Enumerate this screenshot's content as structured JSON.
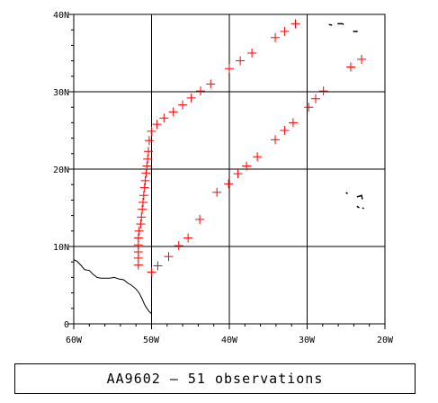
{
  "caption": "AA9602 – 51 observations",
  "axes": {
    "x_ticks": [
      "60W",
      "50W",
      "40W",
      "30W",
      "20W"
    ],
    "y_ticks": [
      "0",
      "10N",
      "20N",
      "30N",
      "40N"
    ]
  },
  "colors": {
    "track": "#ff0000",
    "grid": "#000000",
    "coast": "#000000",
    "background": "#ffffff"
  },
  "map_data": {
    "projection": "equirectangular",
    "lon_range": [
      -60,
      -20
    ],
    "lat_range": [
      0,
      40
    ],
    "grid_lons": [
      -50,
      -40,
      -30
    ],
    "grid_lats": [
      10,
      20,
      30
    ],
    "marker": "plus",
    "observations": [
      [
        -51.7,
        7.6
      ],
      [
        -51.7,
        8.5
      ],
      [
        -51.7,
        9.3
      ],
      [
        -51.7,
        10.2
      ],
      [
        -51.7,
        11.1
      ],
      [
        -51.6,
        12.0
      ],
      [
        -51.4,
        12.9
      ],
      [
        -51.3,
        13.8
      ],
      [
        -51.2,
        14.8
      ],
      [
        -51.1,
        15.7
      ],
      [
        -51.0,
        16.6
      ],
      [
        -50.9,
        17.6
      ],
      [
        -50.8,
        18.5
      ],
      [
        -50.7,
        19.5
      ],
      [
        -50.6,
        20.4
      ],
      [
        -50.5,
        21.3
      ],
      [
        -50.4,
        22.3
      ],
      [
        -50.3,
        23.7
      ],
      [
        -50.0,
        24.9
      ],
      [
        -49.3,
        25.8
      ],
      [
        -48.4,
        26.6
      ],
      [
        -47.2,
        27.4
      ],
      [
        -46.0,
        28.3
      ],
      [
        -44.9,
        29.2
      ],
      [
        -43.7,
        30.1
      ],
      [
        -42.4,
        31.0
      ],
      [
        -40.0,
        33.0
      ],
      [
        -38.6,
        34.0
      ],
      [
        -37.1,
        35.0
      ],
      [
        -34.1,
        37.0
      ],
      [
        -32.9,
        37.8
      ],
      [
        -31.5,
        38.8
      ],
      [
        -23.0,
        34.2
      ],
      [
        -24.4,
        33.2
      ],
      [
        -27.9,
        30.1
      ],
      [
        -28.9,
        29.1
      ],
      [
        -29.8,
        28.0
      ],
      [
        -31.8,
        26.0
      ],
      [
        -32.9,
        25.0
      ],
      [
        -34.1,
        23.8
      ],
      [
        -36.4,
        21.6
      ],
      [
        -37.8,
        20.4
      ],
      [
        -38.9,
        19.4
      ],
      [
        -40.1,
        18.1
      ],
      [
        -41.6,
        17.0
      ],
      [
        -43.8,
        13.5
      ],
      [
        -45.3,
        11.1
      ],
      [
        -47.8,
        8.7
      ],
      [
        -49.2,
        7.5
      ],
      [
        -50.0,
        6.7
      ],
      [
        -46.5,
        10.1
      ]
    ],
    "coastline": [
      [
        -60.0,
        8.3
      ],
      [
        -59.6,
        8.1
      ],
      [
        -59.1,
        7.6
      ],
      [
        -58.6,
        7.0
      ],
      [
        -58.0,
        6.9
      ],
      [
        -57.5,
        6.4
      ],
      [
        -57.0,
        6.0
      ],
      [
        -56.5,
        5.9
      ],
      [
        -56.0,
        5.9
      ],
      [
        -55.4,
        5.9
      ],
      [
        -54.8,
        6.0
      ],
      [
        -54.2,
        5.8
      ],
      [
        -53.6,
        5.7
      ],
      [
        -53.1,
        5.3
      ],
      [
        -52.6,
        5.0
      ],
      [
        -52.0,
        4.5
      ],
      [
        -51.6,
        4.0
      ],
      [
        -51.2,
        3.2
      ],
      [
        -50.9,
        2.5
      ],
      [
        -50.6,
        2.0
      ],
      [
        -50.3,
        1.6
      ],
      [
        -50.0,
        1.3
      ]
    ],
    "islands": [
      [
        [
          -26.1,
          38.8
        ],
        [
          -25.5,
          38.8
        ],
        [
          -25.3,
          38.7
        ]
      ],
      [
        [
          -27.2,
          38.7
        ],
        [
          -26.8,
          38.6
        ]
      ],
      [
        [
          -24.1,
          37.8
        ],
        [
          -23.5,
          37.8
        ]
      ],
      [
        [
          -25.0,
          17.0
        ],
        [
          -24.8,
          16.8
        ]
      ],
      [
        [
          -23.6,
          16.4
        ],
        [
          -23.0,
          16.6
        ],
        [
          -22.9,
          16.1
        ]
      ],
      [
        [
          -23.6,
          15.2
        ],
        [
          -23.3,
          15.0
        ]
      ],
      [
        [
          -22.9,
          15.0
        ],
        [
          -22.7,
          14.9
        ]
      ]
    ]
  }
}
